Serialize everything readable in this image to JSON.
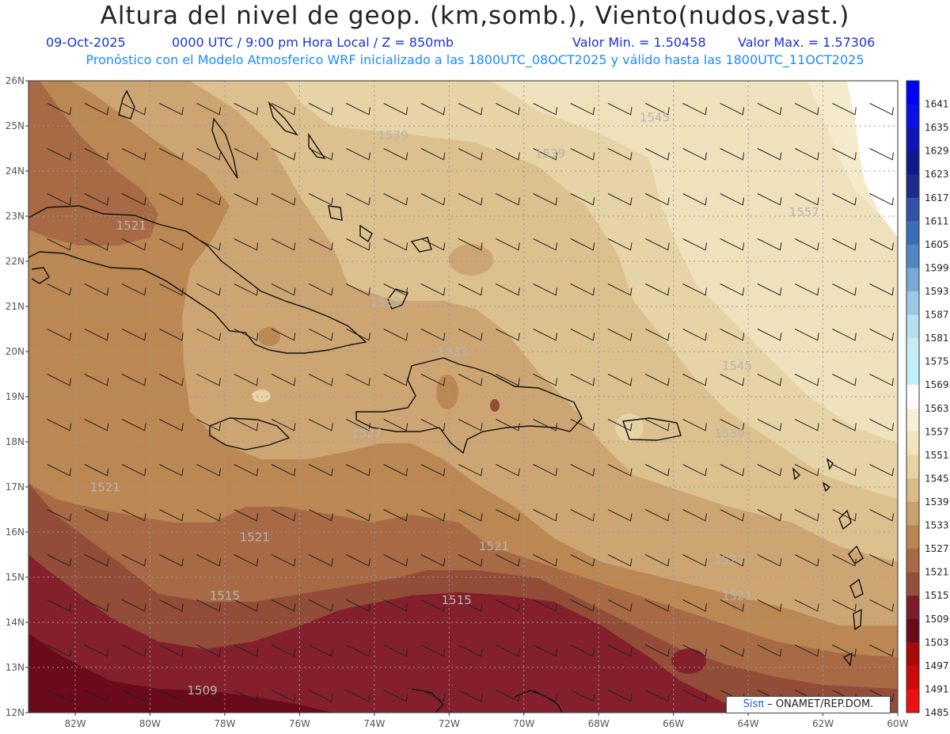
{
  "header": {
    "title": "Altura del nivel de geop. (km,somb.), Viento(nudos,vast.)",
    "date": "09-Oct-2025",
    "time": "0000 UTC / 9:00 pm Hora Local / Z = 850mb",
    "min_label": "Valor Min. = 1.50458",
    "max_label": "Valor Max. = 1.57306",
    "subtitle": "Pronóstico con el Modelo Atmosferico WRF inicializado a las 1800UTC_08OCT2025 y válido hasta las  1800UTC_11OCT2025"
  },
  "axes": {
    "lon_labels": [
      "82W",
      "80W",
      "78W",
      "76W",
      "74W",
      "72W",
      "70W",
      "68W",
      "66W",
      "64W",
      "62W",
      "60W"
    ],
    "lat_labels": [
      "26N",
      "25N",
      "24N",
      "23N",
      "22N",
      "21N",
      "20N",
      "19N",
      "18N",
      "17N",
      "16N",
      "15N",
      "14N",
      "13N",
      "12N"
    ],
    "lon_range": [
      -83.25,
      -60.0
    ],
    "lat_range": [
      12.0,
      26.0
    ]
  },
  "colorbar": {
    "levels": [
      "1641",
      "1635",
      "1629",
      "1623",
      "1617",
      "1611",
      "1605",
      "1599",
      "1593",
      "1587",
      "1581",
      "1575",
      "1569",
      "1563",
      "1557",
      "1551",
      "1545",
      "1539",
      "1533",
      "1527",
      "1521",
      "1515",
      "1509",
      "1503",
      "1497",
      "1491",
      "1485"
    ],
    "colors": [
      "#0000ff",
      "#0a10e6",
      "#0e16b8",
      "#101a8c",
      "#1c2a8a",
      "#3352a8",
      "#3b6db8",
      "#5287c4",
      "#7aa8d6",
      "#9cc8e6",
      "#b8e0f0",
      "#c8ecf4",
      "#c0f0f8",
      "#ffffff",
      "#f8f0d4",
      "#f0e4bc",
      "#e6d2a4",
      "#d8bb88",
      "#c9a06c",
      "#b8844f",
      "#a86a42",
      "#94503a",
      "#7c1e2a",
      "#6a0a1a",
      "#a80a0a",
      "#cc0a0a",
      "#ee1111"
    ]
  },
  "contour_labels": [
    {
      "text": "1545",
      "lon": -66.5,
      "lat": 25.1
    },
    {
      "text": "1539",
      "lon": -73.5,
      "lat": 24.7
    },
    {
      "text": "1539",
      "lon": -69.3,
      "lat": 24.3
    },
    {
      "text": "1557",
      "lon": -62.5,
      "lat": 23.0
    },
    {
      "text": "1521",
      "lon": -80.5,
      "lat": 22.7
    },
    {
      "text": "1533",
      "lon": -73.7,
      "lat": 21.0
    },
    {
      "text": "1533",
      "lon": -71.9,
      "lat": 19.9
    },
    {
      "text": "1545",
      "lon": -64.3,
      "lat": 19.6
    },
    {
      "text": "1527",
      "lon": -74.2,
      "lat": 18.1
    },
    {
      "text": "1539",
      "lon": -64.5,
      "lat": 18.1
    },
    {
      "text": "1521",
      "lon": -81.2,
      "lat": 16.9
    },
    {
      "text": "1521",
      "lon": -77.2,
      "lat": 15.8
    },
    {
      "text": "1521",
      "lon": -70.8,
      "lat": 15.6
    },
    {
      "text": "1527",
      "lon": -64.5,
      "lat": 15.3
    },
    {
      "text": "1515",
      "lon": -78.0,
      "lat": 14.5
    },
    {
      "text": "1515",
      "lon": -71.8,
      "lat": 14.4
    },
    {
      "text": "1521",
      "lon": -64.3,
      "lat": 14.5
    },
    {
      "text": "1509",
      "lon": -78.6,
      "lat": 12.4
    }
  ],
  "wind": {
    "u_knots": -6,
    "v_knots": 3
  },
  "credit": {
    "sis": "Sisπ",
    "rest": "– ONAMET/REP.DOM."
  }
}
